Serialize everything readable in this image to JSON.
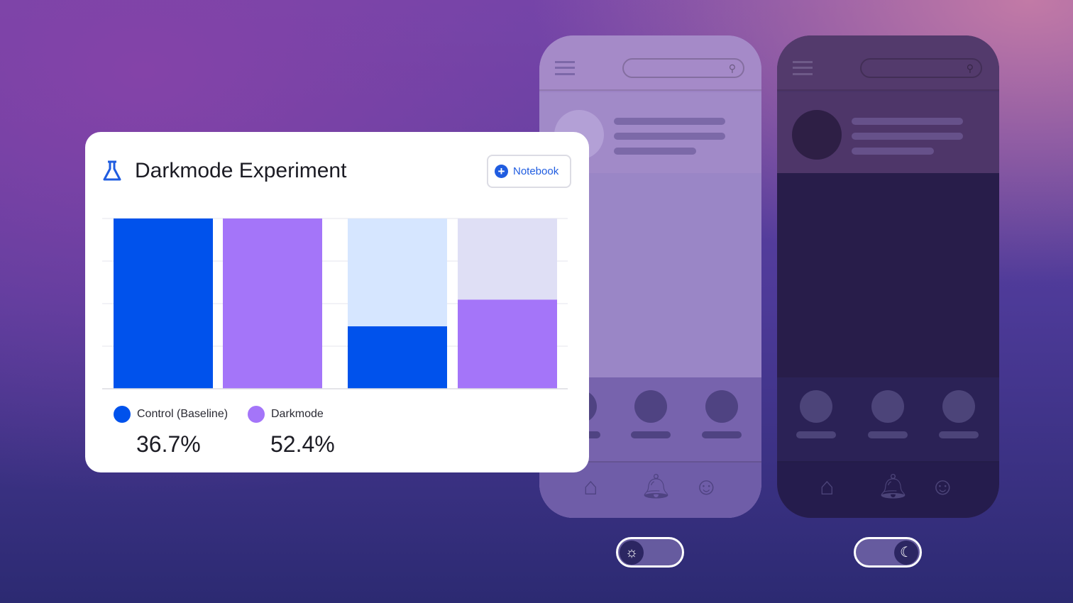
{
  "card": {
    "title": "Darkmode Experiment",
    "notebook_label": "Notebook"
  },
  "legend": [
    {
      "label": "Control (Baseline)",
      "value": "36.7%",
      "color": "#0052ec"
    },
    {
      "label": "Darkmode",
      "value": "52.4%",
      "color": "#a475f9"
    }
  ],
  "chart_data": {
    "type": "bar",
    "stacked": true,
    "categories": [
      "",
      "",
      "",
      ""
    ],
    "ylim": [
      0,
      100
    ],
    "grid": true,
    "series": [
      {
        "values": [
          100,
          100,
          36.7,
          52.4
        ],
        "colors": [
          "#0052ec",
          "#a475f9",
          "#0052ec",
          "#a475f9"
        ]
      },
      {
        "values": [
          0,
          0,
          63.3,
          47.6
        ],
        "colors": [
          "#d6e6ff",
          "#dfdff5",
          "#d6e6ff",
          "#dfdff5"
        ]
      }
    ]
  },
  "phones": {
    "light": {
      "icons": [
        "menu-icon",
        "search-icon",
        "home-icon",
        "bell-icon",
        "profile-icon"
      ]
    },
    "dark": {
      "icons": [
        "menu-icon",
        "search-icon",
        "home-icon",
        "bell-icon",
        "profile-icon"
      ]
    }
  },
  "toggles": {
    "light": {
      "icon": "sun-icon",
      "glyph": "☼"
    },
    "dark": {
      "icon": "moon-icon",
      "glyph": "☾"
    }
  }
}
